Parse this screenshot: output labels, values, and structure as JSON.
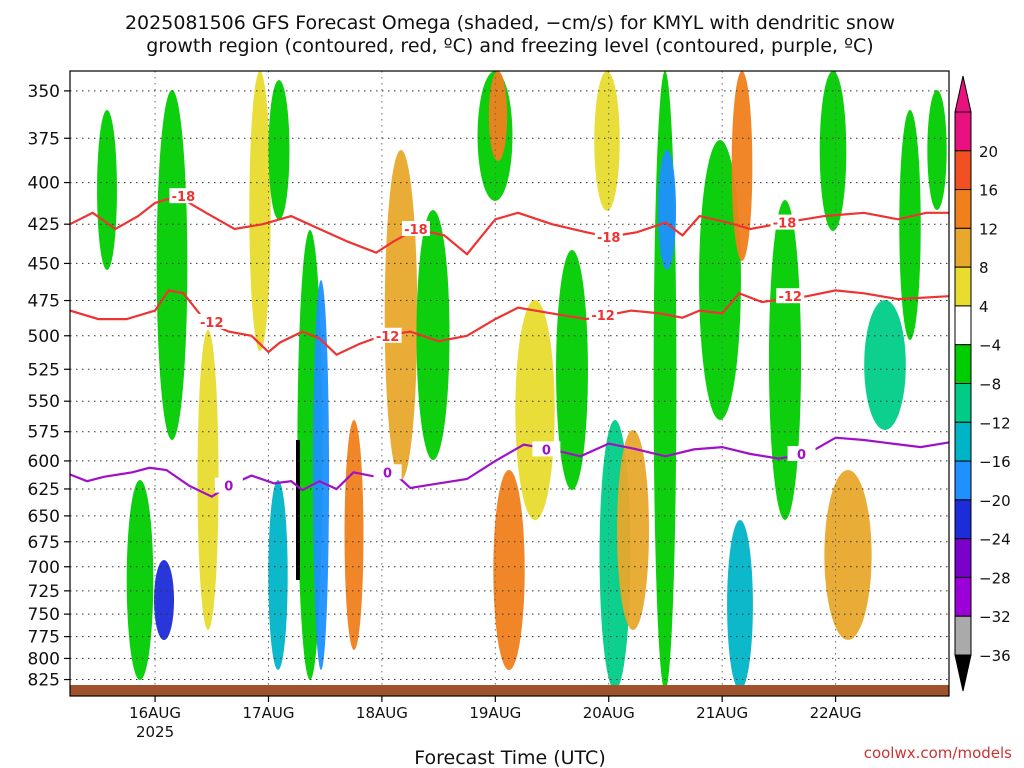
{
  "chart_data": {
    "type": "heatmap",
    "title_line1": "2025081506 GFS Forecast Omega (shaded, −cm/s) for KMYL with dendritic snow",
    "title_line2": "growth region (contoured, red, ºC) and freezing level (contoured, purple, ºC)",
    "xlabel": "Forecast Time (UTC)",
    "credit": "coolwx.com/models",
    "y_axis": {
      "scale": "pressure",
      "range": [
        845,
        340
      ],
      "ticks": [
        350,
        375,
        400,
        425,
        450,
        475,
        500,
        525,
        550,
        575,
        600,
        625,
        650,
        675,
        700,
        725,
        750,
        775,
        800,
        825
      ]
    },
    "x_axis": {
      "range_days": [
        15.25,
        23.0
      ],
      "ticks": [
        {
          "day": 16,
          "label": "16AUG",
          "sub": "2025"
        },
        {
          "day": 17,
          "label": "17AUG",
          "sub": ""
        },
        {
          "day": 18,
          "label": "18AUG",
          "sub": ""
        },
        {
          "day": 19,
          "label": "19AUG",
          "sub": ""
        },
        {
          "day": 20,
          "label": "20AUG",
          "sub": ""
        },
        {
          "day": 21,
          "label": "21AUG",
          "sub": ""
        },
        {
          "day": 22,
          "label": "22AUG",
          "sub": ""
        }
      ]
    },
    "colorbar": {
      "levels": [
        {
          "label": "20",
          "color": "#e8117f"
        },
        {
          "label": "16",
          "color": "#f25022"
        },
        {
          "label": "12",
          "color": "#f07f1e"
        },
        {
          "label": "8",
          "color": "#e8a82b"
        },
        {
          "label": "4",
          "color": "#e8dc2e"
        },
        {
          "label": "−4",
          "color": "#ffffff"
        },
        {
          "label": "−8",
          "color": "#00cc00"
        },
        {
          "label": "−12",
          "color": "#00cc88"
        },
        {
          "label": "−16",
          "color": "#00b4c8"
        },
        {
          "label": "−20",
          "color": "#1e90ff"
        },
        {
          "label": "−24",
          "color": "#1c2cd8"
        },
        {
          "label": "−28",
          "color": "#7a00cc"
        },
        {
          "label": "−32",
          "color": "#9b00d8"
        },
        {
          "label": "−36",
          "color": "#aaaaaa"
        }
      ],
      "bottom_color": "#000000"
    },
    "contours": [
      {
        "label": "-18",
        "color": "#ee3333",
        "points": [
          [
            15.25,
            425
          ],
          [
            15.45,
            418
          ],
          [
            15.65,
            428
          ],
          [
            15.85,
            420
          ],
          [
            16.0,
            412
          ],
          [
            16.2,
            408
          ],
          [
            16.45,
            418
          ],
          [
            16.7,
            428
          ],
          [
            16.95,
            425
          ],
          [
            17.2,
            420
          ],
          [
            17.45,
            428
          ],
          [
            17.7,
            436
          ],
          [
            17.95,
            443
          ],
          [
            18.1,
            436
          ],
          [
            18.3,
            428
          ],
          [
            18.55,
            432
          ],
          [
            18.75,
            444
          ],
          [
            19.0,
            422
          ],
          [
            19.2,
            418
          ],
          [
            19.5,
            425
          ],
          [
            19.8,
            430
          ],
          [
            20.0,
            433
          ],
          [
            20.25,
            430
          ],
          [
            20.5,
            424
          ],
          [
            20.65,
            432
          ],
          [
            20.8,
            420
          ],
          [
            21.05,
            424
          ],
          [
            21.25,
            428
          ],
          [
            21.55,
            424
          ],
          [
            21.9,
            420
          ],
          [
            22.25,
            418
          ],
          [
            22.55,
            422
          ],
          [
            22.8,
            418
          ],
          [
            23.0,
            418
          ]
        ],
        "labels": [
          [
            16.25,
            -18
          ],
          [
            18.3,
            -18
          ],
          [
            20.0,
            -18
          ],
          [
            21.55,
            -18
          ]
        ]
      },
      {
        "label": "-12",
        "color": "#ee3333",
        "points": [
          [
            15.25,
            482
          ],
          [
            15.5,
            488
          ],
          [
            15.75,
            488
          ],
          [
            16.0,
            482
          ],
          [
            16.12,
            468
          ],
          [
            16.25,
            470
          ],
          [
            16.45,
            490
          ],
          [
            16.65,
            497
          ],
          [
            16.85,
            500
          ],
          [
            17.0,
            512
          ],
          [
            17.1,
            505
          ],
          [
            17.3,
            497
          ],
          [
            17.45,
            502
          ],
          [
            17.6,
            514
          ],
          [
            17.8,
            506
          ],
          [
            18.0,
            500
          ],
          [
            18.25,
            497
          ],
          [
            18.5,
            504
          ],
          [
            18.75,
            500
          ],
          [
            19.0,
            488
          ],
          [
            19.2,
            480
          ],
          [
            19.5,
            484
          ],
          [
            19.8,
            488
          ],
          [
            20.0,
            485
          ],
          [
            20.2,
            482
          ],
          [
            20.45,
            484
          ],
          [
            20.65,
            487
          ],
          [
            20.8,
            482
          ],
          [
            21.0,
            484
          ],
          [
            21.15,
            470
          ],
          [
            21.35,
            476
          ],
          [
            21.75,
            472
          ],
          [
            22.0,
            468
          ],
          [
            22.25,
            470
          ],
          [
            22.55,
            474
          ],
          [
            23.0,
            472
          ]
        ],
        "labels": [
          [
            16.5,
            -12
          ],
          [
            18.05,
            -12
          ],
          [
            19.95,
            -12
          ],
          [
            21.6,
            -12
          ]
        ]
      },
      {
        "label": "0",
        "color": "#a010c8",
        "points": [
          [
            15.25,
            612
          ],
          [
            15.4,
            618
          ],
          [
            15.55,
            614
          ],
          [
            15.8,
            610
          ],
          [
            15.95,
            606
          ],
          [
            16.1,
            608
          ],
          [
            16.3,
            622
          ],
          [
            16.5,
            632
          ],
          [
            16.65,
            622
          ],
          [
            16.85,
            613
          ],
          [
            17.05,
            620
          ],
          [
            17.2,
            618
          ],
          [
            17.3,
            626
          ],
          [
            17.45,
            618
          ],
          [
            17.6,
            625
          ],
          [
            17.75,
            610
          ],
          [
            17.95,
            614
          ],
          [
            18.1,
            610
          ],
          [
            18.25,
            624
          ],
          [
            18.5,
            620
          ],
          [
            18.75,
            616
          ],
          [
            19.0,
            600
          ],
          [
            19.25,
            586
          ],
          [
            19.5,
            590
          ],
          [
            19.75,
            596
          ],
          [
            20.0,
            585
          ],
          [
            20.25,
            590
          ],
          [
            20.5,
            596
          ],
          [
            20.75,
            590
          ],
          [
            21.0,
            588
          ],
          [
            21.25,
            594
          ],
          [
            21.5,
            598
          ],
          [
            21.75,
            594
          ],
          [
            22.0,
            580
          ],
          [
            22.25,
            582
          ],
          [
            22.5,
            585
          ],
          [
            22.75,
            588
          ],
          [
            23.0,
            584
          ]
        ],
        "labels": [
          [
            16.65,
            0
          ],
          [
            18.05,
            0
          ],
          [
            19.45,
            0
          ],
          [
            21.7,
            0
          ]
        ]
      }
    ]
  }
}
